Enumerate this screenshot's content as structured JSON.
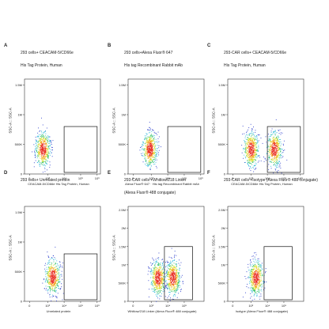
{
  "chart_data": [
    {
      "type": "scatter",
      "panel": "A",
      "title": "293 cells+ CEACAM-5/CD66e",
      "subtitle": "His Tag Protein, Human",
      "xlabel": "CEACAM-5/CD66e His Tag Protein, Human",
      "ylabel": "SSC-A :: SSC-A",
      "xscale": "log",
      "yticks": [
        "1.5M",
        "1M",
        "500K",
        "0"
      ],
      "ylim": [
        0,
        1600000
      ],
      "xticks": [
        "0",
        "10³",
        "10⁴",
        "10⁵",
        "10⁶"
      ],
      "clusters": [
        {
          "x_log": 2.7,
          "y": 420000
        }
      ],
      "gate": {
        "x_log": [
          4.0,
          6.0
        ],
        "y": [
          0,
          800000
        ]
      }
    },
    {
      "type": "scatter",
      "panel": "B",
      "title": "293 cells+Alexa Fluor® 647",
      "subtitle": "His tag Recombinant Rabbit mAb",
      "xlabel": "Alexa Fluor® 647 · His tag Recombinant Rabbit mAb",
      "ylabel": "SSC-A :: SSC-A",
      "xscale": "log",
      "yticks": [
        "1.5M",
        "1M",
        "500K",
        "0"
      ],
      "ylim": [
        0,
        1600000
      ],
      "xticks": [
        "0",
        "10³",
        "10⁴",
        "10⁵",
        "10⁶"
      ],
      "clusters": [
        {
          "x_log": 2.9,
          "y": 420000
        }
      ],
      "gate": {
        "x_log": [
          4.0,
          6.0
        ],
        "y": [
          0,
          800000
        ]
      }
    },
    {
      "type": "scatter",
      "panel": "C",
      "title": "293-CAR cells+ CEACAM-5/CD66e",
      "subtitle": "His Tag Protein, Human",
      "xlabel": "CEACAM-5/CD66e His Tag Protein, Human",
      "ylabel": "SSC-A :: SSC-A",
      "xscale": "log",
      "yticks": [
        "1.5M",
        "1M",
        "500K",
        "0"
      ],
      "ylim": [
        0,
        1600000
      ],
      "xticks": [
        "0",
        "10³",
        "10⁴",
        "10⁵",
        "10⁶"
      ],
      "clusters": [
        {
          "x_log": 3.0,
          "y": 420000
        },
        {
          "x_log": 4.4,
          "y": 420000
        }
      ],
      "gate": {
        "x_log": [
          4.0,
          6.0
        ],
        "y": [
          0,
          800000
        ]
      }
    },
    {
      "type": "scatter",
      "panel": "D",
      "title": "293 cells+ Unrelated protein",
      "subtitle": "",
      "xlabel": "Unrelated protein",
      "ylabel": "SSC-A :: SSC-A",
      "xscale": "log",
      "yticks": [
        "1.5M",
        "1M",
        "500K",
        "0"
      ],
      "ylim": [
        0,
        1600000
      ],
      "xticks": [
        "0",
        "10³",
        "10⁴",
        "10⁵",
        "10⁶"
      ],
      "clusters": [
        {
          "x_log": 3.3,
          "y": 420000
        }
      ],
      "gate": {
        "x_log": [
          4.0,
          6.0
        ],
        "y": [
          0,
          800000
        ]
      }
    },
    {
      "type": "scatter",
      "panel": "E",
      "title": "293-CAR cells +Whitlow/218 Linker",
      "subtitle": "(Alexa Fluor® 488 conjugate)",
      "xlabel": "Whitlow/218 Linker (Alexa Fluor® 488 conjugate)",
      "ylabel": "SSC-A :: SSC-A",
      "xscale": "log",
      "yticks": [
        "2.5M",
        "2M",
        "1.5M",
        "1M",
        "500K",
        "0"
      ],
      "ylim": [
        0,
        2600000
      ],
      "xticks": [
        "0",
        "10³",
        "10⁴",
        "10⁵"
      ],
      "clusters": [
        {
          "x_log": 3.4,
          "y": 650000
        },
        {
          "x_log": 4.3,
          "y": 650000
        }
      ],
      "gate": {
        "x_log": [
          3.8,
          5.5
        ],
        "y": [
          0,
          1500000
        ]
      }
    },
    {
      "type": "scatter",
      "panel": "F",
      "title": "293-CAR cells +Isotype (Alexa Fluor® 488 conjugate)",
      "subtitle": "",
      "xlabel": "Isotype (Alexa Fluor® 488 conjugate)",
      "ylabel": "SSC-A :: SSC-A",
      "xscale": "log",
      "yticks": [
        "2.5M",
        "2M",
        "1.5M",
        "1M",
        "500K",
        "0"
      ],
      "ylim": [
        0,
        2600000
      ],
      "xticks": [
        "0",
        "10³",
        "10⁴",
        "10⁵"
      ],
      "clusters": [
        {
          "x_log": 3.3,
          "y": 650000
        }
      ],
      "gate": {
        "x_log": [
          3.8,
          5.5
        ],
        "y": [
          0,
          1500000
        ]
      }
    }
  ]
}
